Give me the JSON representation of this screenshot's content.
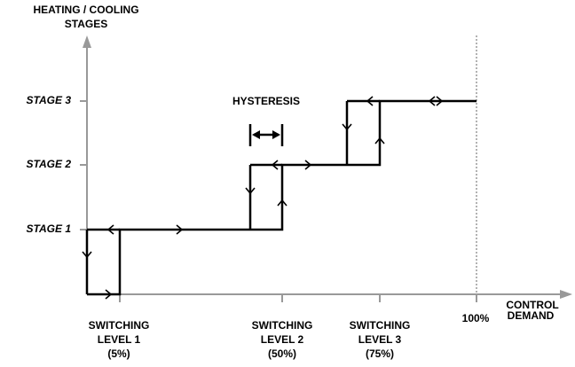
{
  "y_axis_title": [
    "HEATING / COOLING",
    "STAGES"
  ],
  "x_axis_title": [
    "CONTROL",
    "DEMAND"
  ],
  "stages": [
    "STAGE 3",
    "STAGE 2",
    "STAGE 1"
  ],
  "hysteresis": "HYSTERESIS",
  "end_label": "100%",
  "switching_levels": [
    [
      "SWITCHING",
      "LEVEL 1",
      "(5%)"
    ],
    [
      "SWITCHING",
      "LEVEL 2",
      "(50%)"
    ],
    [
      "SWITCHING",
      "LEVEL 3",
      "(75%)"
    ]
  ]
}
